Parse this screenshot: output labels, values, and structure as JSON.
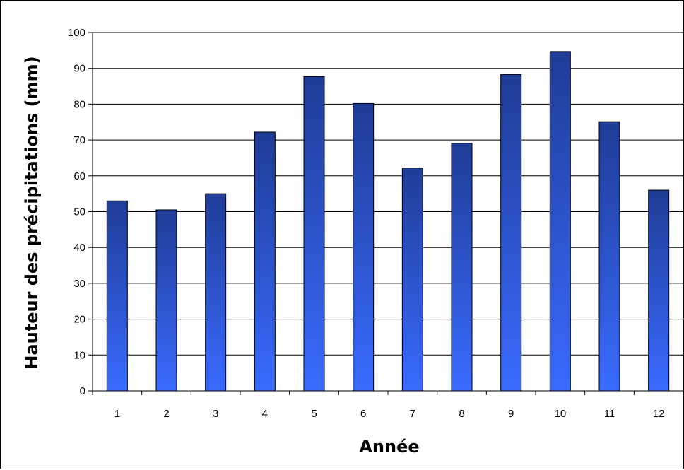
{
  "chart_data": {
    "type": "bar",
    "title": "",
    "xlabel": "Année",
    "ylabel": "Hauteur des précipitations (mm)",
    "categories": [
      "1",
      "2",
      "3",
      "4",
      "5",
      "6",
      "7",
      "8",
      "9",
      "10",
      "11",
      "12"
    ],
    "values": [
      53,
      50.5,
      55,
      72.2,
      87.7,
      80.2,
      62.2,
      69.1,
      88.3,
      94.7,
      75.1,
      56
    ],
    "ylim": [
      0,
      100
    ],
    "yticks": [
      "0",
      "10",
      "20",
      "30",
      "40",
      "50",
      "60",
      "70",
      "80",
      "90",
      "100"
    ],
    "grid": true,
    "legend": "none",
    "colors": {
      "bar_top": "#1f3c96",
      "bar_bottom": "#3a6bff",
      "bar_stroke": "#000000",
      "grid": "#000000"
    }
  }
}
